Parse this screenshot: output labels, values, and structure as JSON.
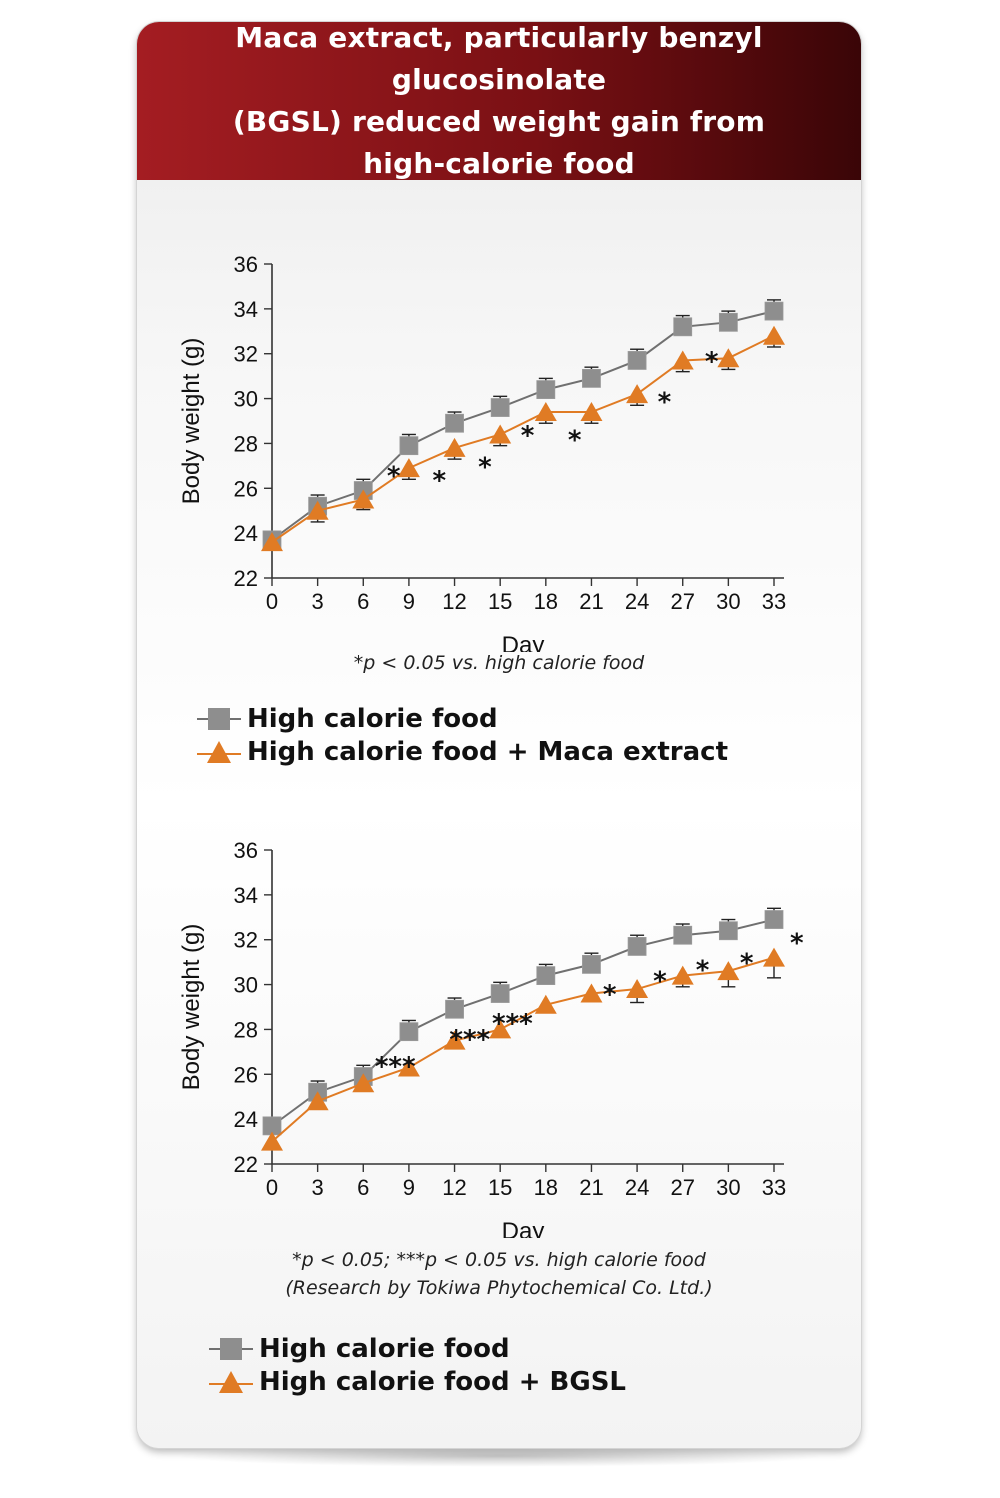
{
  "header": {
    "title_lines": [
      "Maca extract, particularly benzyl glucosinolate",
      "(BGSL) reduced weight gain from",
      "high-calorie food"
    ]
  },
  "colors": {
    "header_red": "#a41d22",
    "header_dark": "#3a0507",
    "control": "#8e8e8e",
    "treatment": "#e07b24",
    "line_control": "#707070"
  },
  "chart_data": [
    {
      "type": "line",
      "xlabel": "Day",
      "ylabel": "Body weight (g)",
      "x": [
        0,
        3,
        6,
        9,
        12,
        15,
        18,
        21,
        24,
        27,
        30,
        33
      ],
      "xlim": [
        0,
        33
      ],
      "ylim": [
        22,
        36
      ],
      "yticks": [
        22,
        24,
        26,
        28,
        30,
        32,
        34,
        36
      ],
      "grid": false,
      "series": [
        {
          "name": "High calorie food",
          "marker": "square",
          "values": [
            23.7,
            25.2,
            25.9,
            27.9,
            28.9,
            29.6,
            30.4,
            30.9,
            31.7,
            33.2,
            33.4,
            33.9
          ],
          "errors": [
            0.15,
            0.5,
            0.5,
            0.5,
            0.5,
            0.5,
            0.5,
            0.5,
            0.5,
            0.5,
            0.5,
            0.5
          ]
        },
        {
          "name": "High calorie food + Maca extract",
          "marker": "triangle",
          "values": [
            23.6,
            25.0,
            25.5,
            26.9,
            27.8,
            28.4,
            29.4,
            29.4,
            30.2,
            31.7,
            31.8,
            32.8
          ],
          "errors": [
            0.15,
            0.5,
            0.45,
            0.5,
            0.5,
            0.5,
            0.5,
            0.5,
            0.5,
            0.5,
            0.5,
            0.5
          ]
        }
      ],
      "annotations": [
        {
          "text": "*",
          "x": 8.0,
          "y": 26.8
        },
        {
          "text": "*",
          "x": 11.0,
          "y": 26.6
        },
        {
          "text": "*",
          "x": 14.0,
          "y": 27.2
        },
        {
          "text": "*",
          "x": 16.8,
          "y": 28.6
        },
        {
          "text": "*",
          "x": 19.9,
          "y": 28.4
        },
        {
          "text": "*",
          "x": 25.8,
          "y": 30.1
        },
        {
          "text": "*",
          "x": 28.9,
          "y": 31.9
        }
      ],
      "footnote": "*p < 0.05 vs. high calorie food"
    },
    {
      "type": "line",
      "xlabel": "Day",
      "ylabel": "Body weight (g)",
      "x": [
        0,
        3,
        6,
        9,
        12,
        15,
        18,
        21,
        24,
        27,
        30,
        33
      ],
      "xlim": [
        0,
        33
      ],
      "ylim": [
        22,
        36
      ],
      "yticks": [
        22,
        24,
        26,
        28,
        30,
        32,
        34,
        36
      ],
      "grid": false,
      "series": [
        {
          "name": "High calorie food",
          "marker": "square",
          "values": [
            23.7,
            25.2,
            25.9,
            27.9,
            28.9,
            29.6,
            30.4,
            30.9,
            31.7,
            32.2,
            32.4,
            32.9
          ],
          "errors": [
            0.15,
            0.5,
            0.5,
            0.5,
            0.5,
            0.5,
            0.5,
            0.5,
            0.5,
            0.5,
            0.5,
            0.5
          ]
        },
        {
          "name": "High calorie food + BGSL",
          "marker": "triangle",
          "values": [
            23.0,
            24.8,
            25.6,
            26.3,
            27.5,
            28.0,
            29.1,
            29.6,
            29.8,
            30.4,
            30.6,
            31.2
          ],
          "errors": [
            0.15,
            0.2,
            0.2,
            0.2,
            0.2,
            0.2,
            0.2,
            0.2,
            0.6,
            0.5,
            0.7,
            0.9
          ]
        }
      ],
      "annotations": [
        {
          "text": "***",
          "x": 8.1,
          "y": 26.6
        },
        {
          "text": "***",
          "x": 13.0,
          "y": 27.8
        },
        {
          "text": "***",
          "x": 15.8,
          "y": 28.5
        },
        {
          "text": "*",
          "x": 22.2,
          "y": 29.8
        },
        {
          "text": "*",
          "x": 25.5,
          "y": 30.4
        },
        {
          "text": "*",
          "x": 28.3,
          "y": 30.9
        },
        {
          "text": "*",
          "x": 31.2,
          "y": 31.2
        },
        {
          "text": "*",
          "x": 34.5,
          "y": 32.1
        }
      ],
      "footnote": "*p < 0.05; ***p < 0.05 vs. high calorie food",
      "credit": "(Research by Tokiwa Phytochemical Co. Ltd.)"
    }
  ]
}
